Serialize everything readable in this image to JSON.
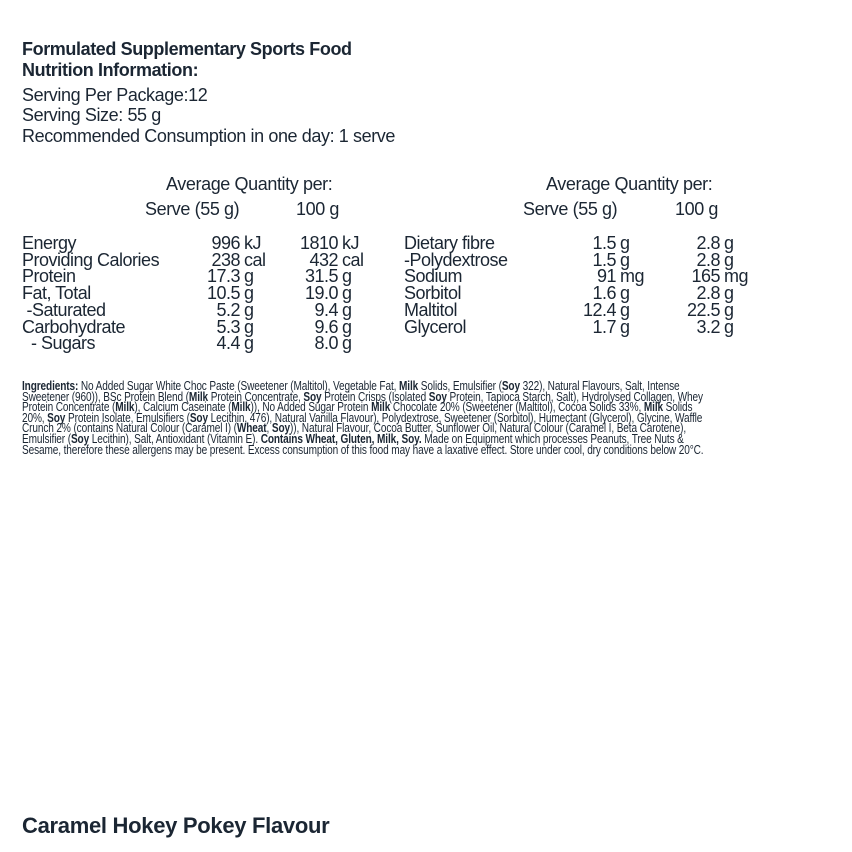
{
  "header": {
    "title": "Formulated Supplementary Sports Food",
    "subtitle": "Nutrition Information:",
    "servings_per_package": "Serving Per Package:12",
    "serving_size": "Serving Size: 55 g",
    "recommended": "Recommended Consumption in one day: 1 serve"
  },
  "table_left": {
    "heading": "Average Quantity per:",
    "col_serve": "Serve (55 g)",
    "col_100g": "100 g",
    "rows": [
      {
        "label": "Energy",
        "serve": "996",
        "serve_unit": "kJ",
        "per100": "1810",
        "per100_unit": "kJ"
      },
      {
        "label": "Providing Calories",
        "serve": "238",
        "serve_unit": "cal",
        "per100": "432",
        "per100_unit": "cal"
      },
      {
        "label": "Protein",
        "serve": "17.3",
        "serve_unit": "g",
        "per100": "31.5",
        "per100_unit": "g"
      },
      {
        "label": "Fat, Total",
        "serve": "10.5",
        "serve_unit": "g",
        "per100": "19.0",
        "per100_unit": "g"
      },
      {
        "label": " -Saturated",
        "serve": "5.2",
        "serve_unit": "g",
        "per100": "9.4",
        "per100_unit": "g"
      },
      {
        "label": "Carbohydrate",
        "serve": "5.3",
        "serve_unit": "g",
        "per100": "9.6",
        "per100_unit": "g"
      },
      {
        "label": "  - Sugars",
        "serve": "4.4",
        "serve_unit": "g",
        "per100": "8.0",
        "per100_unit": "g"
      }
    ]
  },
  "table_right": {
    "heading": "Average Quantity per:",
    "col_serve": "Serve (55 g)",
    "col_100g": "100 g",
    "rows": [
      {
        "label": "Dietary fibre",
        "serve": "1.5",
        "serve_unit": "g",
        "per100": "2.8",
        "per100_unit": "g"
      },
      {
        "label": "-Polydextrose",
        "serve": "1.5",
        "serve_unit": "g",
        "per100": "2.8",
        "per100_unit": "g"
      },
      {
        "label": "Sodium",
        "serve": "91",
        "serve_unit": "mg",
        "per100": "165",
        "per100_unit": "mg"
      },
      {
        "label": "Sorbitol",
        "serve": "1.6",
        "serve_unit": "g",
        "per100": "2.8",
        "per100_unit": "g"
      },
      {
        "label": "Maltitol",
        "serve": "12.4",
        "serve_unit": "g",
        "per100": "22.5",
        "per100_unit": "g"
      },
      {
        "label": "Glycerol",
        "serve": "1.7",
        "serve_unit": "g",
        "per100": "3.2",
        "per100_unit": "g"
      }
    ]
  },
  "ingredients": [
    [
      [
        "Ingredients:",
        1
      ],
      [
        " No Added Sugar White Choc Paste (Sweetener (Maltitol), Vegetable Fat, ",
        0
      ],
      [
        "Milk",
        1
      ],
      [
        " Solids, Emulsifier (",
        0
      ],
      [
        "Soy",
        1
      ],
      [
        " 322), Natural Flavours, Salt, Intense",
        0
      ]
    ],
    [
      [
        "Sweetener (960)), BSc Protein Blend (",
        0
      ],
      [
        "Milk",
        1
      ],
      [
        " Protein Concentrate, ",
        0
      ],
      [
        "Soy",
        1
      ],
      [
        " Protein Crisps (Isolated ",
        0
      ],
      [
        "Soy",
        1
      ],
      [
        " Protein, Tapioca Starch, Salt), Hydrolysed Collagen, Whey",
        0
      ]
    ],
    [
      [
        "Protein Concentrate (",
        0
      ],
      [
        "Milk",
        1
      ],
      [
        "), Calcium Caseinate (",
        0
      ],
      [
        "Milk",
        1
      ],
      [
        ")), No Added Sugar Protein ",
        0
      ],
      [
        "Milk",
        1
      ],
      [
        " Chocolate 20% (Sweetener (Maltitol), Cocoa Solids 33%, ",
        0
      ],
      [
        "Milk",
        1
      ],
      [
        " Solids",
        0
      ]
    ],
    [
      [
        "20%, ",
        0
      ],
      [
        "Soy",
        1
      ],
      [
        " Protein Isolate, Emulsifiers (",
        0
      ],
      [
        "Soy",
        1
      ],
      [
        " Lecithin, 476), Natural Vanilla Flavour), Polydextrose, Sweetener (Sorbitol), Humectant (Glycerol), Glycine, Waffle",
        0
      ]
    ],
    [
      [
        "Crunch 2% (contains Natural Colour (Caramel I) (",
        0
      ],
      [
        "Wheat",
        1
      ],
      [
        ", ",
        0
      ],
      [
        "Soy",
        1
      ],
      [
        ")), Natural Flavour, Cocoa Butter, Sunflower Oil, Natural Colour (Caramel I, Beta Carotene),",
        0
      ]
    ],
    [
      [
        "Emulsifier (",
        0
      ],
      [
        "Soy",
        1
      ],
      [
        " Lecithin), Salt, Antioxidant (Vitamin E). ",
        0
      ],
      [
        "Contains Wheat, Gluten, Milk, Soy.",
        1
      ],
      [
        " Made on Equipment which processes Peanuts, Tree Nuts &",
        0
      ]
    ],
    [
      [
        "Sesame, therefore these allergens may be present. Excess consumption of this food may have a laxative effect. Store under cool, dry conditions below 20°C.",
        0
      ]
    ]
  ],
  "flavour": "Caramel Hokey Pokey Flavour",
  "colors": {
    "text": "#1b2633",
    "background": "#ffffff"
  }
}
